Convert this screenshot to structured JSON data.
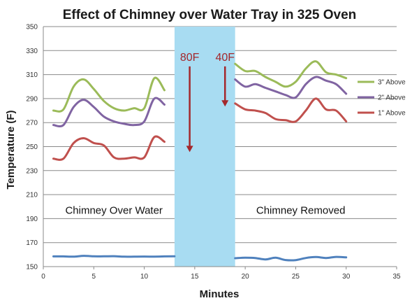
{
  "chart_data": {
    "type": "line",
    "title": "Effect of Chimney over Water Tray in 325 Oven",
    "xlabel": "Minutes",
    "ylabel": "Temperature (F)",
    "xlim": [
      0,
      35
    ],
    "ylim": [
      150,
      350
    ],
    "xticks": [
      "0",
      "5",
      "10",
      "15",
      "20",
      "25",
      "30",
      "35"
    ],
    "yticks": [
      "150",
      "170",
      "190",
      "210",
      "230",
      "250",
      "270",
      "290",
      "310",
      "330",
      "350"
    ],
    "grid": "horizontal",
    "legend_position": "right",
    "shaded_region": {
      "x_from": 13,
      "x_to": 19,
      "color": "#a8dcf2"
    },
    "annotations": [
      {
        "text": "Chimney Over Water",
        "x": 7,
        "y": 197
      },
      {
        "text": "Chimney Removed",
        "x": 25.5,
        "y": 197
      },
      {
        "text": "80F",
        "x": 14.5,
        "y": 325,
        "arrow_to_y": 246
      },
      {
        "text": "40F",
        "x": 18,
        "y": 325,
        "arrow_to_y": 284
      }
    ],
    "series": [
      {
        "name": "3\" Above",
        "color": "#9bbb59",
        "segments": [
          {
            "x": [
              1,
              2,
              3,
              4,
              5,
              6,
              7,
              8,
              9,
              10,
              11,
              12
            ],
            "y": [
              280,
              281,
              300,
              306,
              298,
              288,
              282,
              280,
              282,
              282,
              307,
              297
            ]
          },
          {
            "x": [
              19,
              20,
              21,
              22,
              23,
              24,
              25,
              26,
              27,
              28,
              29,
              30
            ],
            "y": [
              319,
              313,
              313,
              308,
              304,
              300,
              304,
              315,
              321,
              312,
              310,
              307
            ]
          }
        ]
      },
      {
        "name": "2\" Above",
        "color": "#8064a2",
        "segments": [
          {
            "x": [
              1,
              2,
              3,
              4,
              5,
              6,
              7,
              8,
              9,
              10,
              11,
              12
            ],
            "y": [
              268,
              268,
              283,
              289,
              283,
              275,
              271,
              269,
              268,
              271,
              290,
              285
            ]
          },
          {
            "x": [
              19,
              20,
              21,
              22,
              23,
              24,
              25,
              26,
              27,
              28,
              29,
              30
            ],
            "y": [
              306,
              300,
              302,
              299,
              296,
              293,
              291,
              302,
              308,
              305,
              302,
              294
            ]
          }
        ]
      },
      {
        "name": "1\" Above",
        "color": "#c0504d",
        "segments": [
          {
            "x": [
              1,
              2,
              3,
              4,
              5,
              6,
              7,
              8,
              9,
              10,
              11,
              12
            ],
            "y": [
              240,
              240,
              253,
              257,
              253,
              251,
              241,
              240,
              241,
              241,
              258,
              254
            ]
          },
          {
            "x": [
              19,
              20,
              21,
              22,
              23,
              24,
              25,
              26,
              27,
              28,
              29,
              30
            ],
            "y": [
              286,
              281,
              280,
              278,
              273,
              272,
              271,
              280,
              290,
              281,
              280,
              271
            ]
          }
        ]
      },
      {
        "name": "",
        "color": "#4f81bd",
        "segments": [
          {
            "x": [
              1,
              2,
              3,
              4,
              5,
              6,
              7,
              8,
              9,
              10,
              11,
              12,
              13
            ],
            "y": [
              158.5,
              158.5,
              158.3,
              159,
              158.6,
              158.6,
              158.7,
              158.3,
              158.3,
              158.4,
              158.3,
              158.5,
              158.6
            ]
          },
          {
            "x": [
              19,
              20,
              21,
              22,
              23,
              24,
              25,
              26,
              27,
              28,
              29,
              30
            ],
            "y": [
              157,
              157.4,
              157.2,
              156,
              157.4,
              155.5,
              155.4,
              157.2,
              158,
              157.2,
              158.1,
              157.7
            ]
          }
        ]
      }
    ]
  }
}
